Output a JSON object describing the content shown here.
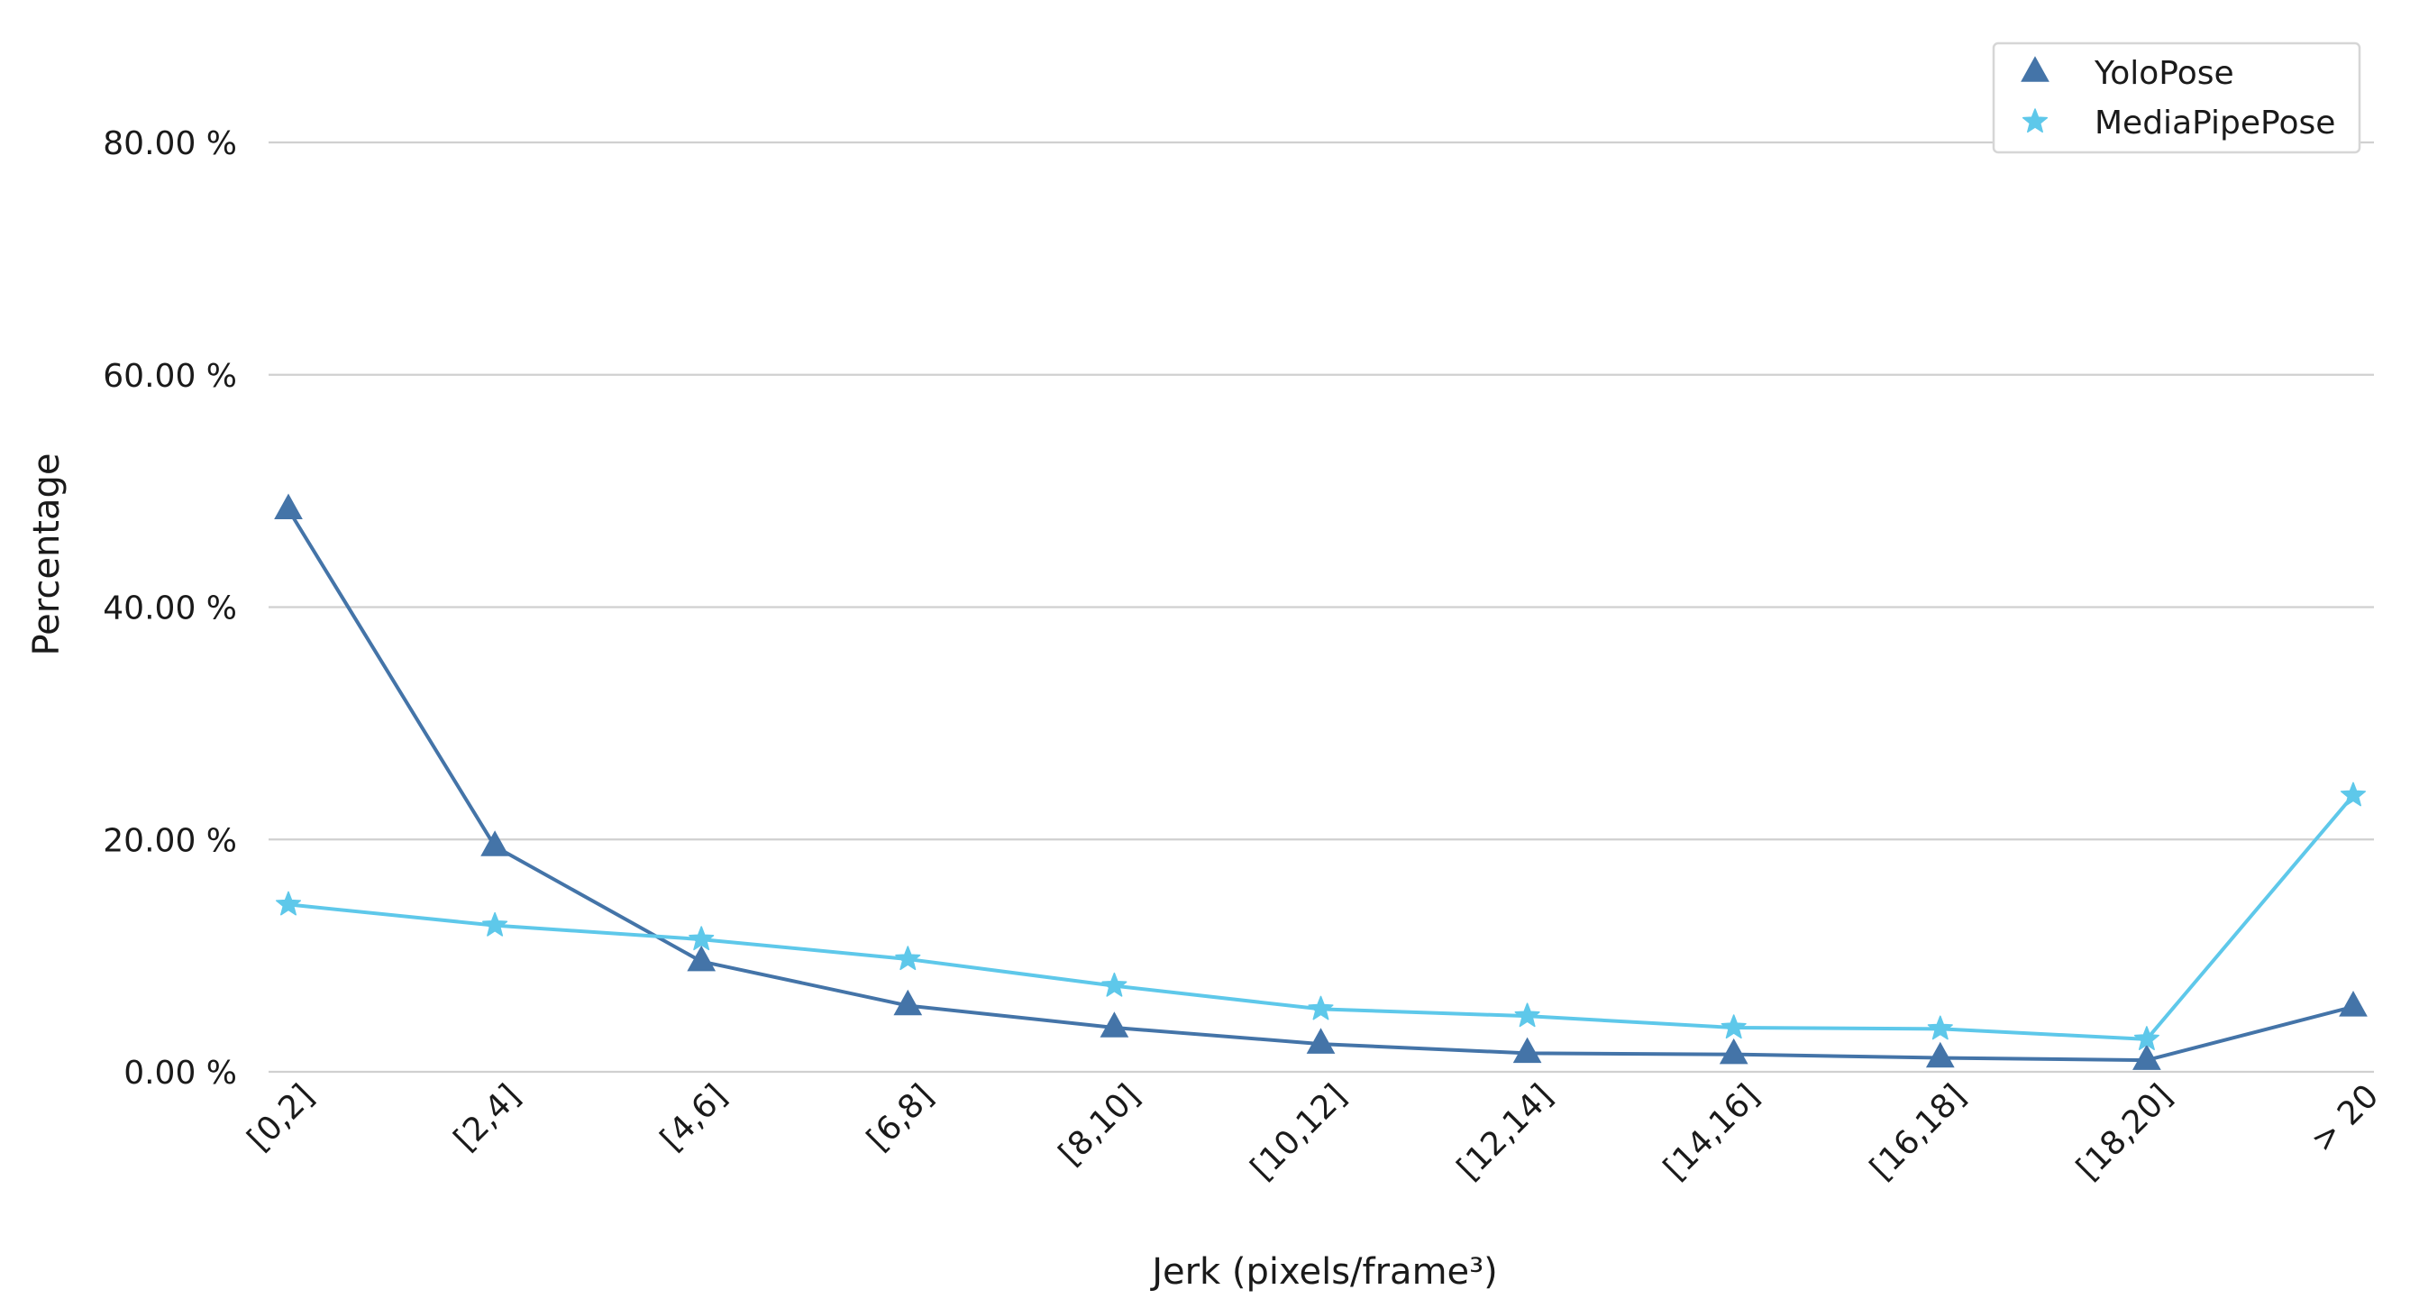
{
  "chart_data": {
    "type": "line",
    "title": "",
    "xlabel": "Jerk (pixels/frame³)",
    "ylabel": "Percentage",
    "categories": [
      "[0,2]",
      "[2,4]",
      "[4,6]",
      "[6,8]",
      "[8,10]",
      "[10,12]",
      "[12,14]",
      "[14,16]",
      "[16,18]",
      "[18,20]",
      "> 20"
    ],
    "y_ticks": [
      "0.00 %",
      "20.00 %",
      "40.00 %",
      "60.00 %",
      "80.00 %"
    ],
    "ylim": [
      0,
      85
    ],
    "grid": "horizontal",
    "legend_position": "top-right",
    "series": [
      {
        "name": "YoloPose",
        "marker": "triangle",
        "color": "#4474a8",
        "values": [
          48.4,
          19.4,
          9.5,
          5.7,
          3.8,
          2.4,
          1.6,
          1.5,
          1.2,
          1.0,
          5.6
        ]
      },
      {
        "name": "MediaPipePose",
        "marker": "star",
        "color": "#5ec8ea",
        "values": [
          14.4,
          12.6,
          11.4,
          9.7,
          7.4,
          5.4,
          4.8,
          3.8,
          3.7,
          2.8,
          23.8
        ]
      }
    ]
  }
}
